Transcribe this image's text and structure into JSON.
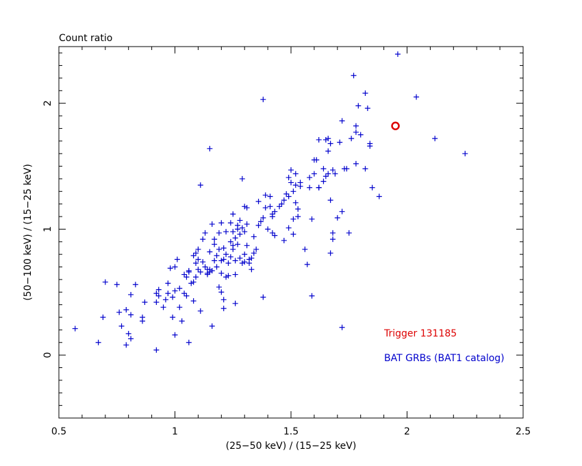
{
  "chart_data": {
    "type": "scatter",
    "title": "Count ratio",
    "xlabel": "(25−50 keV) / (15−25 keV)",
    "ylabel": "(50−100 keV) / (15−25 keV)",
    "xlim": [
      0.5,
      2.5
    ],
    "ylim": [
      -0.5,
      2.45
    ],
    "x_ticks": [
      "0.5",
      "1",
      "1.5",
      "2",
      "2.5"
    ],
    "y_ticks": [
      "0",
      "1",
      "2"
    ],
    "grid": false,
    "legend": "bottom-right",
    "colors": {
      "catalog": "#0000cc",
      "trigger": "#dd0000",
      "axes": "#000000"
    },
    "series": [
      {
        "name": "Trigger 131185",
        "marker": "circle",
        "points": [
          [
            1.95,
            1.82
          ]
        ]
      },
      {
        "name": "BAT GRBs (BAT1 catalog)",
        "marker": "plus",
        "points": [
          [
            0.57,
            0.21
          ],
          [
            0.67,
            0.1
          ],
          [
            0.69,
            0.3
          ],
          [
            0.7,
            0.58
          ],
          [
            0.75,
            0.56
          ],
          [
            0.76,
            0.34
          ],
          [
            0.77,
            0.23
          ],
          [
            0.79,
            0.36
          ],
          [
            0.79,
            0.08
          ],
          [
            0.8,
            0.17
          ],
          [
            0.81,
            0.13
          ],
          [
            0.81,
            0.32
          ],
          [
            0.81,
            0.48
          ],
          [
            0.83,
            0.56
          ],
          [
            0.86,
            0.27
          ],
          [
            0.86,
            0.3
          ],
          [
            0.87,
            0.42
          ],
          [
            0.92,
            0.49
          ],
          [
            0.92,
            0.04
          ],
          [
            0.92,
            0.42
          ],
          [
            0.93,
            0.52
          ],
          [
            0.93,
            0.47
          ],
          [
            0.95,
            0.38
          ],
          [
            0.96,
            0.44
          ],
          [
            0.97,
            0.57
          ],
          [
            0.97,
            0.49
          ],
          [
            0.98,
            0.69
          ],
          [
            0.99,
            0.46
          ],
          [
            0.99,
            0.3
          ],
          [
            1.0,
            0.7
          ],
          [
            1.0,
            0.51
          ],
          [
            1.0,
            0.16
          ],
          [
            1.01,
            0.76
          ],
          [
            1.02,
            0.53
          ],
          [
            1.02,
            0.38
          ],
          [
            1.03,
            0.27
          ],
          [
            1.04,
            0.64
          ],
          [
            1.04,
            0.49
          ],
          [
            1.05,
            0.47
          ],
          [
            1.05,
            0.62
          ],
          [
            1.06,
            0.1
          ],
          [
            1.06,
            0.66
          ],
          [
            1.06,
            0.67
          ],
          [
            1.07,
            0.57
          ],
          [
            1.08,
            0.43
          ],
          [
            1.08,
            0.79
          ],
          [
            1.08,
            0.58
          ],
          [
            1.09,
            0.62
          ],
          [
            1.09,
            0.73
          ],
          [
            1.09,
            0.81
          ],
          [
            1.1,
            0.68
          ],
          [
            1.1,
            0.84
          ],
          [
            1.1,
            0.76
          ],
          [
            1.11,
            0.35
          ],
          [
            1.11,
            1.35
          ],
          [
            1.11,
            0.66
          ],
          [
            1.12,
            0.92
          ],
          [
            1.12,
            0.74
          ],
          [
            1.13,
            0.97
          ],
          [
            1.13,
            0.7
          ],
          [
            1.14,
            0.65
          ],
          [
            1.14,
            0.64
          ],
          [
            1.14,
            0.68
          ],
          [
            1.15,
            0.82
          ],
          [
            1.15,
            0.66
          ],
          [
            1.15,
            1.64
          ],
          [
            1.15,
            0.68
          ],
          [
            1.16,
            1.04
          ],
          [
            1.16,
            0.67
          ],
          [
            1.16,
            0.23
          ],
          [
            1.17,
            0.92
          ],
          [
            1.17,
            0.88
          ],
          [
            1.17,
            0.75
          ],
          [
            1.18,
            0.79
          ],
          [
            1.18,
            0.7
          ],
          [
            1.19,
            0.54
          ],
          [
            1.19,
            0.84
          ],
          [
            1.19,
            0.97
          ],
          [
            1.2,
            0.5
          ],
          [
            1.2,
            0.75
          ],
          [
            1.2,
            0.65
          ],
          [
            1.2,
            1.05
          ],
          [
            1.21,
            0.76
          ],
          [
            1.21,
            0.44
          ],
          [
            1.21,
            0.37
          ],
          [
            1.21,
            0.85
          ],
          [
            1.22,
            0.62
          ],
          [
            1.22,
            0.98
          ],
          [
            1.22,
            0.8
          ],
          [
            1.23,
            0.63
          ],
          [
            1.23,
            0.73
          ],
          [
            1.24,
            1.05
          ],
          [
            1.24,
            0.9
          ],
          [
            1.24,
            0.78
          ],
          [
            1.25,
            0.84
          ],
          [
            1.25,
            0.98
          ],
          [
            1.25,
            1.12
          ],
          [
            1.25,
            0.87
          ],
          [
            1.26,
            0.93
          ],
          [
            1.26,
            0.64
          ],
          [
            1.26,
            0.41
          ],
          [
            1.26,
            0.75
          ],
          [
            1.27,
            1.03
          ],
          [
            1.27,
            0.88
          ],
          [
            1.27,
            1.0
          ],
          [
            1.28,
            0.96
          ],
          [
            1.28,
            0.77
          ],
          [
            1.28,
            1.07
          ],
          [
            1.29,
            1.01
          ],
          [
            1.29,
            0.73
          ],
          [
            1.29,
            1.4
          ],
          [
            1.3,
            1.18
          ],
          [
            1.3,
            0.74
          ],
          [
            1.3,
            0.8
          ],
          [
            1.3,
            0.98
          ],
          [
            1.31,
            1.04
          ],
          [
            1.31,
            0.87
          ],
          [
            1.31,
            1.17
          ],
          [
            1.32,
            0.73
          ],
          [
            1.32,
            0.76
          ],
          [
            1.33,
            0.77
          ],
          [
            1.33,
            0.68
          ],
          [
            1.34,
            0.94
          ],
          [
            1.34,
            0.81
          ],
          [
            1.35,
            0.84
          ],
          [
            1.36,
            1.22
          ],
          [
            1.36,
            1.03
          ],
          [
            1.37,
            1.06
          ],
          [
            1.38,
            2.03
          ],
          [
            1.38,
            1.09
          ],
          [
            1.38,
            0.46
          ],
          [
            1.39,
            1.17
          ],
          [
            1.39,
            1.27
          ],
          [
            1.4,
            1.0
          ],
          [
            1.41,
            1.26
          ],
          [
            1.41,
            1.18
          ],
          [
            1.42,
            1.12
          ],
          [
            1.42,
            0.97
          ],
          [
            1.42,
            1.1
          ],
          [
            1.43,
            0.95
          ],
          [
            1.43,
            1.14
          ],
          [
            1.45,
            1.18
          ],
          [
            1.46,
            1.2
          ],
          [
            1.47,
            1.23
          ],
          [
            1.47,
            0.91
          ],
          [
            1.48,
            1.28
          ],
          [
            1.49,
            1.41
          ],
          [
            1.49,
            1.01
          ],
          [
            1.49,
            1.26
          ],
          [
            1.5,
            1.47
          ],
          [
            1.5,
            1.37
          ],
          [
            1.51,
            0.96
          ],
          [
            1.51,
            1.3
          ],
          [
            1.51,
            1.08
          ],
          [
            1.52,
            1.44
          ],
          [
            1.52,
            1.35
          ],
          [
            1.52,
            1.21
          ],
          [
            1.53,
            1.16
          ],
          [
            1.53,
            1.1
          ],
          [
            1.54,
            1.34
          ],
          [
            1.54,
            1.37
          ],
          [
            1.56,
            0.84
          ],
          [
            1.57,
            0.72
          ],
          [
            1.58,
            1.41
          ],
          [
            1.58,
            1.33
          ],
          [
            1.59,
            1.08
          ],
          [
            1.59,
            0.47
          ],
          [
            1.6,
            1.55
          ],
          [
            1.6,
            1.44
          ],
          [
            1.61,
            1.55
          ],
          [
            1.62,
            1.33
          ],
          [
            1.62,
            1.71
          ],
          [
            1.62,
            1.33
          ],
          [
            1.64,
            1.48
          ],
          [
            1.64,
            1.38
          ],
          [
            1.65,
            1.71
          ],
          [
            1.65,
            1.42
          ],
          [
            1.66,
            1.72
          ],
          [
            1.66,
            1.62
          ],
          [
            1.66,
            1.44
          ],
          [
            1.67,
            1.23
          ],
          [
            1.67,
            0.81
          ],
          [
            1.67,
            1.68
          ],
          [
            1.68,
            0.92
          ],
          [
            1.68,
            0.97
          ],
          [
            1.68,
            1.47
          ],
          [
            1.69,
            1.44
          ],
          [
            1.7,
            1.09
          ],
          [
            1.71,
            1.69
          ],
          [
            1.72,
            1.14
          ],
          [
            1.72,
            0.22
          ],
          [
            1.72,
            1.86
          ],
          [
            1.73,
            1.48
          ],
          [
            1.74,
            1.48
          ],
          [
            1.75,
            0.97
          ],
          [
            1.76,
            1.72
          ],
          [
            1.77,
            2.22
          ],
          [
            1.78,
            1.77
          ],
          [
            1.78,
            1.52
          ],
          [
            1.78,
            1.82
          ],
          [
            1.79,
            1.98
          ],
          [
            1.8,
            1.75
          ],
          [
            1.82,
            2.08
          ],
          [
            1.82,
            1.48
          ],
          [
            1.83,
            1.96
          ],
          [
            1.84,
            1.66
          ],
          [
            1.84,
            1.68
          ],
          [
            1.85,
            1.33
          ],
          [
            1.88,
            1.26
          ],
          [
            1.96,
            2.39
          ],
          [
            2.04,
            2.05
          ],
          [
            2.12,
            1.72
          ],
          [
            2.25,
            1.6
          ]
        ]
      }
    ]
  }
}
